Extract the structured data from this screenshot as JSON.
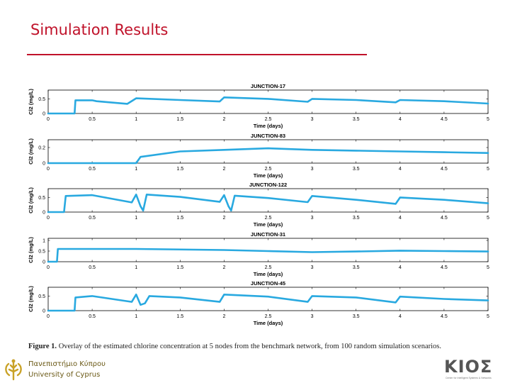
{
  "slide": {
    "title": "Simulation Results",
    "caption_label": "Figure 1.",
    "caption_text": " Overlay of the estimated chlorine concentration at 5 nodes from the benchmark network, from 100 random simulation scenarios."
  },
  "logos": {
    "university_greek": "Πανεπιστήμιο Κύπρου",
    "university_english": "University of Cyprus",
    "kios_word": "KIOΣ",
    "kios_subtitle": "Center for Intelligent Systems & Networks"
  },
  "colors": {
    "title": "#c0122a",
    "series": "#29a9e0",
    "axis": "#000000"
  },
  "chart_data": [
    {
      "type": "line",
      "title": "JUNCTION-17",
      "xlabel": "Time (days)",
      "ylabel": "Cl2 (mg/L)",
      "xlim": [
        0,
        5
      ],
      "ylim": [
        0,
        0.8
      ],
      "yticks": [
        0,
        0.5
      ],
      "xticks": [
        0,
        0.5,
        1,
        1.5,
        2,
        2.5,
        3,
        3.5,
        4,
        4.5,
        5
      ],
      "xtick_labels": [
        "0",
        "0.5",
        "1",
        "1.5",
        "2",
        "2.5",
        "3",
        "3.5",
        "4",
        "4.5",
        "5"
      ],
      "ytick_labels": [
        "0",
        "0.5"
      ],
      "series": [
        {
          "x": [
            0,
            0.3,
            0.31,
            0.5,
            0.55,
            0.9,
            1.0,
            1.5,
            1.95,
            2.0,
            2.5,
            2.95,
            3.0,
            3.5,
            3.95,
            4.0,
            4.5,
            5.0
          ],
          "y": [
            0,
            0,
            0.45,
            0.45,
            0.42,
            0.33,
            0.52,
            0.46,
            0.41,
            0.55,
            0.5,
            0.4,
            0.5,
            0.46,
            0.38,
            0.46,
            0.42,
            0.34
          ]
        }
      ]
    },
    {
      "type": "line",
      "title": "JUNCTION-83",
      "xlabel": "Time (days)",
      "ylabel": "Cl2 (mg/L)",
      "xlim": [
        0,
        5
      ],
      "ylim": [
        0,
        0.3
      ],
      "yticks": [
        0,
        0.2
      ],
      "xticks": [
        0,
        0.5,
        1,
        1.5,
        2,
        2.5,
        3,
        3.5,
        4,
        4.5,
        5
      ],
      "xtick_labels": [
        "0",
        "0.5",
        "1",
        "1.5",
        "2",
        "2.5",
        "3",
        "3.5",
        "4",
        "4.5",
        "5"
      ],
      "ytick_labels": [
        "0",
        "0.2"
      ],
      "series": [
        {
          "x": [
            0,
            1.0,
            1.05,
            1.5,
            2.0,
            2.5,
            3.0,
            3.5,
            4.0,
            4.5,
            5.0
          ],
          "y": [
            0,
            0,
            0.08,
            0.15,
            0.17,
            0.19,
            0.17,
            0.16,
            0.15,
            0.14,
            0.13
          ]
        }
      ]
    },
    {
      "type": "line",
      "title": "JUNCTION-122",
      "xlabel": "Time (days)",
      "ylabel": "Cl2 (mg/L)",
      "xlim": [
        0,
        5
      ],
      "ylim": [
        0,
        0.8
      ],
      "yticks": [
        0,
        0.5
      ],
      "xticks": [
        0,
        0.5,
        1,
        1.5,
        2,
        2.5,
        3,
        3.5,
        4,
        4.5,
        5
      ],
      "xtick_labels": [
        "0",
        "0.5",
        "1",
        "1.5",
        "2",
        "2.5",
        "3",
        "3.5",
        "4",
        "4.5",
        "5"
      ],
      "ytick_labels": [
        "0",
        "0.5"
      ],
      "series": [
        {
          "x": [
            0,
            0.18,
            0.2,
            0.5,
            0.95,
            1.0,
            1.05,
            1.08,
            1.12,
            1.5,
            1.95,
            2.0,
            2.05,
            2.08,
            2.12,
            2.5,
            2.95,
            3.0,
            3.5,
            3.95,
            4.0,
            4.5,
            5.0
          ],
          "y": [
            0,
            0,
            0.55,
            0.58,
            0.33,
            0.6,
            0.2,
            0.05,
            0.6,
            0.52,
            0.35,
            0.58,
            0.2,
            0.05,
            0.56,
            0.48,
            0.34,
            0.55,
            0.42,
            0.28,
            0.5,
            0.42,
            0.3
          ]
        }
      ]
    },
    {
      "type": "line",
      "title": "JUNCTION-31",
      "xlabel": "Time (days)",
      "ylabel": "Cl2 (mg/L)",
      "xlim": [
        0,
        5
      ],
      "ylim": [
        0,
        1.1
      ],
      "yticks": [
        0,
        0.5,
        1
      ],
      "xticks": [
        0,
        0.5,
        1,
        1.5,
        2,
        2.5,
        3,
        3.5,
        4,
        4.5,
        5
      ],
      "xtick_labels": [
        "0",
        "0.5",
        "1",
        "1.5",
        "2",
        "2.5",
        "3",
        "3.5",
        "4",
        "4.5",
        "5"
      ],
      "ytick_labels": [
        "0",
        "0.5",
        "1"
      ],
      "series": [
        {
          "x": [
            0,
            0.1,
            0.11,
            1.0,
            2.0,
            2.5,
            3.0,
            3.5,
            4.0,
            4.5,
            5.0
          ],
          "y": [
            0,
            0,
            0.6,
            0.6,
            0.55,
            0.5,
            0.45,
            0.48,
            0.52,
            0.5,
            0.48
          ]
        }
      ]
    },
    {
      "type": "line",
      "title": "JUNCTION-45",
      "xlabel": "Time (days)",
      "ylabel": "Cl2 (mg/L)",
      "xlim": [
        0,
        5
      ],
      "ylim": [
        0,
        0.8
      ],
      "yticks": [
        0,
        0.5
      ],
      "xticks": [
        0,
        0.5,
        1,
        1.5,
        2,
        2.5,
        3,
        3.5,
        4,
        4.5,
        5
      ],
      "xtick_labels": [
        "0",
        "0.5",
        "1",
        "1.5",
        "2",
        "2.5",
        "3",
        "3.5",
        "4",
        "4.5",
        "5"
      ],
      "ytick_labels": [
        "0",
        "0.5"
      ],
      "series": [
        {
          "x": [
            0,
            0.3,
            0.31,
            0.5,
            0.95,
            1.0,
            1.05,
            1.1,
            1.15,
            1.5,
            1.95,
            2.0,
            2.5,
            2.95,
            3.0,
            3.5,
            3.95,
            4.0,
            4.5,
            5.0
          ],
          "y": [
            0,
            0,
            0.45,
            0.5,
            0.3,
            0.55,
            0.2,
            0.25,
            0.5,
            0.45,
            0.3,
            0.55,
            0.48,
            0.3,
            0.5,
            0.45,
            0.28,
            0.48,
            0.4,
            0.35
          ]
        }
      ]
    }
  ]
}
